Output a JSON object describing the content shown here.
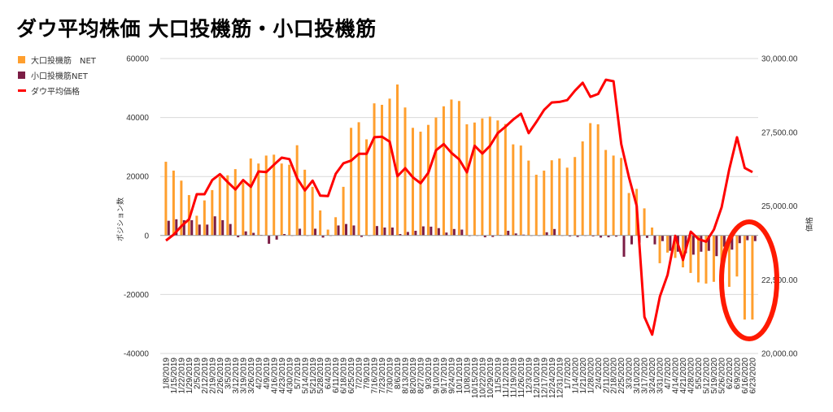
{
  "chart_data": {
    "type": "bar+line",
    "title": "ダウ平均株価 大口投機筋・小口投機筋",
    "ylabel": "ポジション数",
    "y2label": "価格",
    "ylim": [
      -40000,
      60000
    ],
    "y2lim": [
      20000,
      30000
    ],
    "yticks": [
      "60000",
      "40000",
      "20000",
      "0",
      "-20000",
      "-40000"
    ],
    "y2ticks": [
      "30,000.00",
      "27,500.00",
      "25,000.00",
      "22,500.00",
      "20,000.00"
    ],
    "grid": true,
    "legend_position": "top-left",
    "categories": [
      "1/8/2019",
      "1/15/2019",
      "1/22/2019",
      "1/29/2019",
      "2/5/2019",
      "2/12/2019",
      "2/19/2019",
      "2/26/2019",
      "3/5/2019",
      "3/12/2019",
      "3/19/2019",
      "3/26/2019",
      "4/2/2019",
      "4/9/2019",
      "4/16/2019",
      "4/23/2019",
      "4/30/2019",
      "5/7/2019",
      "5/14/2019",
      "5/21/2019",
      "5/28/2019",
      "6/4/2019",
      "6/11/2019",
      "6/18/2019",
      "6/25/2019",
      "7/2/2019",
      "7/9/2019",
      "7/16/2019",
      "7/23/2019",
      "7/30/2019",
      "8/6/2019",
      "8/13/2019",
      "8/20/2019",
      "8/27/2019",
      "9/3/2019",
      "9/10/2019",
      "9/17/2019",
      "9/24/2019",
      "10/1/2019",
      "10/8/2019",
      "10/15/2019",
      "10/22/2019",
      "10/29/2019",
      "11/5/2019",
      "11/12/2019",
      "11/19/2019",
      "11/26/2019",
      "12/3/2019",
      "12/10/2019",
      "12/17/2019",
      "12/24/2019",
      "12/31/2019",
      "1/7/2020",
      "1/14/2020",
      "1/21/2020",
      "1/28/2020",
      "2/4/2020",
      "2/11/2020",
      "2/18/2020",
      "2/25/2020",
      "3/3/2020",
      "3/10/2020",
      "3/17/2020",
      "3/24/2020",
      "3/31/2020",
      "4/7/2020",
      "4/14/2020",
      "4/21/2020",
      "4/28/2020",
      "5/5/2020",
      "5/12/2020",
      "5/19/2020",
      "5/26/2020",
      "6/2/2020",
      "6/9/2020",
      "6/16/2020",
      "6/23/2020"
    ],
    "series": [
      {
        "name": "大口投機筋　NET",
        "type": "bar",
        "axis": "left",
        "color": "#FF9F2E",
        "values": [
          25000,
          22000,
          18600,
          13700,
          6700,
          11900,
          15400,
          19900,
          20400,
          22500,
          18000,
          26100,
          24400,
          27100,
          27400,
          24400,
          24000,
          30600,
          22300,
          16500,
          8500,
          2000,
          6200,
          16500,
          36500,
          38400,
          32600,
          44800,
          44300,
          46400,
          51200,
          43400,
          36500,
          35200,
          37500,
          40000,
          43800,
          46100,
          45600,
          37700,
          38300,
          39700,
          40300,
          39000,
          37800,
          30900,
          30500,
          25400,
          20600,
          22000,
          25500,
          26100,
          23000,
          26600,
          31900,
          38100,
          37700,
          29000,
          27100,
          26300,
          14400,
          15800,
          9200,
          2700,
          -9400,
          -5800,
          -7600,
          -10800,
          -12700,
          -15900,
          -16300,
          -15700,
          -13300,
          -17400,
          -13900,
          -28500,
          -28500
        ]
      },
      {
        "name": "小口投機筋NET",
        "type": "bar",
        "axis": "left",
        "color": "#7B1D45",
        "values": [
          5000,
          5500,
          5200,
          5200,
          3700,
          3700,
          6500,
          5200,
          3900,
          -600,
          1400,
          900,
          200,
          -2800,
          -1400,
          500,
          0,
          2300,
          0,
          2300,
          -700,
          0,
          3400,
          3900,
          3400,
          -500,
          0,
          3200,
          2700,
          2700,
          500,
          1200,
          1600,
          3100,
          3000,
          2500,
          1000,
          2200,
          2000,
          -200,
          0,
          -600,
          -500,
          200,
          1600,
          700,
          300,
          0,
          0,
          1100,
          2200,
          0,
          -300,
          -500,
          0,
          -300,
          -700,
          -600,
          -400,
          -7200,
          -3000,
          -2500,
          -800,
          -3000,
          -1900,
          -5200,
          -5500,
          -6000,
          -6500,
          -5500,
          -5200,
          -7000,
          -3800,
          -4800,
          -2600,
          -1600,
          -1900
        ]
      },
      {
        "name": "ダウ平均価格",
        "type": "line",
        "axis": "right",
        "color": "#FF0000",
        "values": [
          23830,
          24030,
          24320,
          24550,
          25400,
          25400,
          25880,
          26080,
          25810,
          25560,
          25880,
          25650,
          26170,
          26150,
          26400,
          26640,
          26590,
          25940,
          25530,
          25860,
          25350,
          25340,
          26090,
          26450,
          26540,
          26770,
          26770,
          27330,
          27350,
          27180,
          26010,
          26280,
          25970,
          25770,
          26130,
          26890,
          27100,
          26800,
          26580,
          26140,
          27040,
          26780,
          27040,
          27470,
          27690,
          27930,
          28130,
          27470,
          27850,
          28260,
          28510,
          28530,
          28590,
          28910,
          29180,
          28700,
          28800,
          29280,
          29230,
          27100,
          25970,
          25000,
          21240,
          20640,
          21930,
          22660,
          23990,
          23170,
          24130,
          23880,
          23790,
          24200,
          24960,
          26250,
          27330,
          26290,
          26150
        ]
      }
    ],
    "annotation": {
      "shape": "ellipse",
      "color": "#FF1A00",
      "highlights": [
        "6/2/2020",
        "6/9/2020",
        "6/16/2020",
        "6/23/2020"
      ]
    }
  }
}
